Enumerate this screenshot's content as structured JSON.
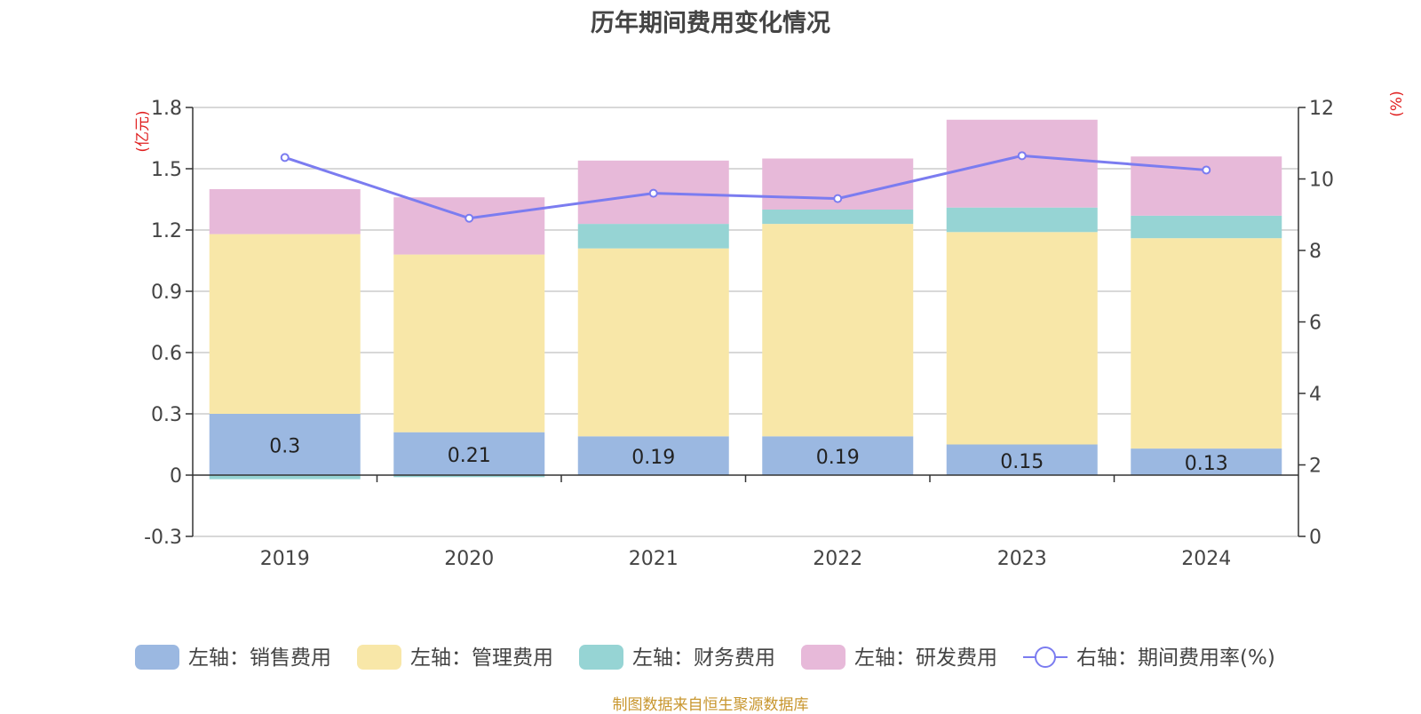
{
  "title": "历年期间费用变化情况",
  "source": "制图数据来自恒生聚源数据库",
  "chart_data": {
    "type": "bar",
    "stacked": true,
    "categories": [
      "2019",
      "2020",
      "2021",
      "2022",
      "2023",
      "2024"
    ],
    "y_left": {
      "unit_label": "(亿元)",
      "ticks": [
        "-0.3",
        "0",
        "0.3",
        "0.6",
        "0.9",
        "1.2",
        "1.5",
        "1.8"
      ],
      "range": [
        -0.3,
        1.8
      ]
    },
    "y_right": {
      "unit_label": "(%)",
      "ticks": [
        "0",
        "2",
        "4",
        "6",
        "8",
        "10",
        "12"
      ],
      "range": [
        0,
        12
      ]
    },
    "grid": true,
    "legend_position": "bottom",
    "series": [
      {
        "name": "左轴：销售费用",
        "type": "bar",
        "axis": "left",
        "color": "#9bb8e1",
        "values": [
          0.3,
          0.21,
          0.19,
          0.19,
          0.15,
          0.13
        ],
        "labels": [
          "0.3",
          "0.21",
          "0.19",
          "0.19",
          "0.15",
          "0.13"
        ]
      },
      {
        "name": "左轴：管理费用",
        "type": "bar",
        "axis": "left",
        "color": "#f8e7a8",
        "values": [
          0.88,
          0.87,
          0.92,
          1.04,
          1.04,
          1.03
        ]
      },
      {
        "name": "左轴：财务费用",
        "type": "bar",
        "axis": "left",
        "color": "#96d4d4",
        "values": [
          -0.02,
          -0.01,
          0.12,
          0.07,
          0.12,
          0.11
        ]
      },
      {
        "name": "左轴：研发费用",
        "type": "bar",
        "axis": "left",
        "color": "#e7b9d9",
        "values": [
          0.22,
          0.28,
          0.31,
          0.25,
          0.43,
          0.29
        ]
      },
      {
        "name": "右轴：期间费用率(%)",
        "type": "line",
        "axis": "right",
        "color": "#7b7cf0",
        "values": [
          10.6,
          8.9,
          9.6,
          9.45,
          10.65,
          10.25
        ]
      }
    ]
  }
}
